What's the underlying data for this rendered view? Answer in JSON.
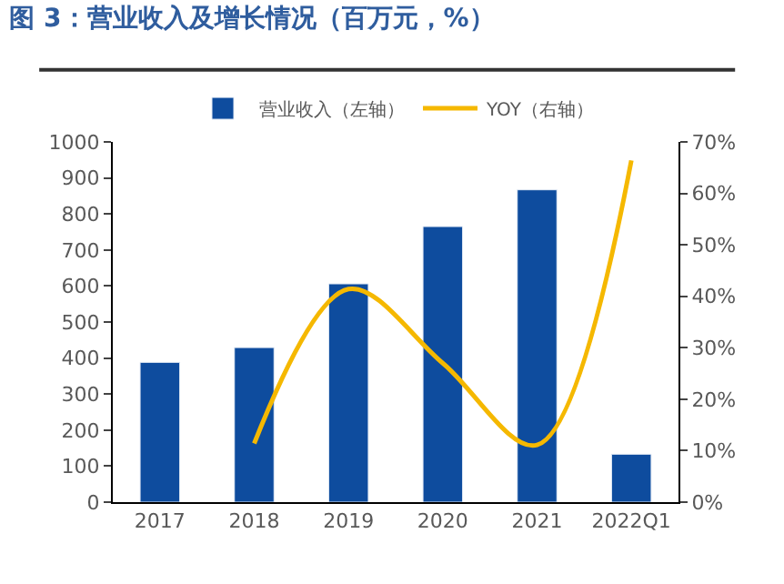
{
  "chart_data": {
    "type": "bar",
    "title": "图 3：营业收入及增长情况（百万元，%）",
    "categories": [
      "2017",
      "2018",
      "2019",
      "2020",
      "2021",
      "2022Q1"
    ],
    "series": [
      {
        "name": "营业收入（左轴）",
        "color": "#0e4c9e",
        "values": [
          388,
          429,
          606,
          765,
          867,
          133
        ]
      },
      {
        "name": "YOY（右轴）",
        "type": "line",
        "axis": "y2",
        "color": "#f5b800",
        "values": [
          null,
          11.4,
          41.4,
          27,
          11.1,
          66.4
        ]
      }
    ],
    "ylim": [
      0,
      1000
    ],
    "yticks": [
      0,
      100,
      200,
      300,
      400,
      500,
      600,
      700,
      800,
      900,
      1000
    ],
    "y2lim": [
      0,
      70
    ],
    "y2ticks": [
      {
        "value": 0,
        "label": "0%"
      },
      {
        "value": 10,
        "label": "10%"
      },
      {
        "value": 20,
        "label": "20%"
      },
      {
        "value": 30,
        "label": "30%"
      },
      {
        "value": 40,
        "label": "40%"
      },
      {
        "value": 50,
        "label": "50%"
      },
      {
        "value": 60,
        "label": "60%"
      },
      {
        "value": 70,
        "label": "70%"
      }
    ],
    "legend": "top",
    "marker": "none",
    "line_style": "solid"
  }
}
